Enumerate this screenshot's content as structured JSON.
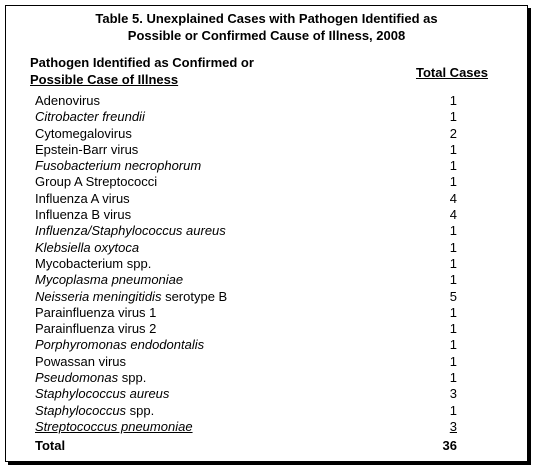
{
  "table": {
    "title_line1": "Table 5.  Unexplained Cases with Pathogen Identified as",
    "title_line2": "Possible or Confirmed Cause of Illness, 2008",
    "col1_header_line1": "Pathogen Identified as Confirmed or",
    "col1_header_line2": "Possible Case of Illness",
    "col2_header": "Total Cases",
    "rows": [
      {
        "name": "Adenovirus",
        "italic": "",
        "suffix": "",
        "count": "1"
      },
      {
        "name": "",
        "italic": "Citrobacter freundii",
        "suffix": "",
        "count": "1"
      },
      {
        "name": "Cytomegalovirus",
        "italic": "",
        "suffix": "",
        "count": "2"
      },
      {
        "name": "Epstein-Barr virus",
        "italic": "",
        "suffix": "",
        "count": "1"
      },
      {
        "name": "",
        "italic": "Fusobacterium necrophorum",
        "suffix": "",
        "count": "1"
      },
      {
        "name": "Group A Streptococci",
        "italic": "",
        "suffix": "",
        "count": "1"
      },
      {
        "name": "Influenza A virus",
        "italic": "",
        "suffix": "",
        "count": "4"
      },
      {
        "name": "Influenza B virus",
        "italic": "",
        "suffix": "",
        "count": "4"
      },
      {
        "name": "",
        "italic": "Influenza/Staphylococcus aureus",
        "suffix": "",
        "count": "1"
      },
      {
        "name": "",
        "italic": "Klebsiella oxytoca",
        "suffix": "",
        "count": "1"
      },
      {
        "name": "Mycobacterium spp.",
        "italic": "",
        "suffix": "",
        "count": "1"
      },
      {
        "name": "",
        "italic": "Mycoplasma pneumoniae",
        "suffix": "",
        "count": "1"
      },
      {
        "name": "",
        "italic": "Neisseria meningitidis",
        "suffix": " serotype B",
        "count": "5"
      },
      {
        "name": "Parainfluenza virus 1",
        "italic": "",
        "suffix": "",
        "count": "1"
      },
      {
        "name": "Parainfluenza virus 2",
        "italic": "",
        "suffix": "",
        "count": "1"
      },
      {
        "name": "",
        "italic": "Porphyromonas endodontalis",
        "suffix": "",
        "count": "1"
      },
      {
        "name": "Powassan virus",
        "italic": "",
        "suffix": "",
        "count": "1"
      },
      {
        "name": "",
        "italic": "Pseudomonas",
        "suffix": " spp.",
        "count": "1"
      },
      {
        "name": "",
        "italic": "Staphylococcus aureus",
        "suffix": "",
        "count": "3"
      },
      {
        "name": "",
        "italic": "Staphylococcus",
        "suffix": " spp.",
        "count": "1"
      },
      {
        "name": "",
        "italic": "Streptococcus pneumoniae",
        "suffix": "",
        "count": "3"
      }
    ],
    "total_label": "Total",
    "total_count": "36"
  }
}
